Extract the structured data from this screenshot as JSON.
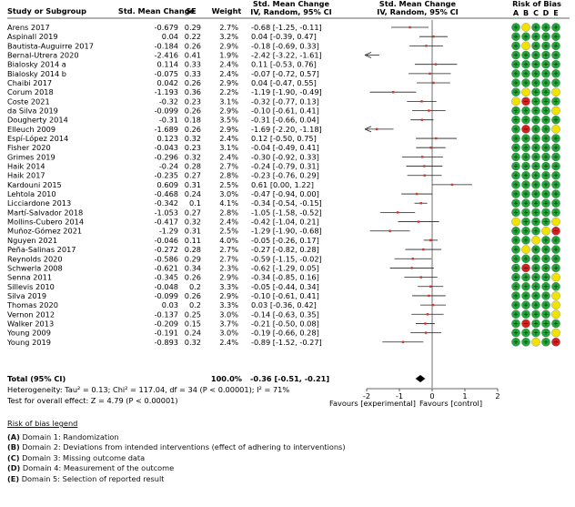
{
  "headers": {
    "study": "Study or Subgroup",
    "smc": "Std. Mean Change",
    "se": "SE",
    "weight": "Weight",
    "ci_col_line1": "Std. Mean Change",
    "ci_col_line2": "IV, Random, 95% CI",
    "plot_line1": "Std. Mean Change",
    "plot_line2": "IV, Random, 95% CI",
    "rob": "Risk of Bias",
    "rob_letters": [
      "A",
      "B",
      "C",
      "D",
      "E"
    ]
  },
  "rob_colors": {
    "green": "#22a63a",
    "yellow": "#f2e200",
    "red": "#d42020"
  },
  "chart_data": {
    "type": "forest",
    "xlim": [
      -2,
      2
    ],
    "xticks": [
      -2,
      -1,
      0,
      1,
      2
    ],
    "xtick_labels": [
      "-2",
      "-1",
      "0",
      "1",
      "2"
    ],
    "favours_left": "Favours [experimental]",
    "favours_right": "Favours [control]",
    "studies": [
      {
        "name": "Arens 2017",
        "smc": "-0.679",
        "se": "0.29",
        "weight": "2.7%",
        "ci": "-0.68 [-1.25, -0.11]",
        "est": -0.68,
        "lo": -1.25,
        "hi": -0.11,
        "rob": [
          "g",
          "y",
          "g",
          "g",
          "g"
        ]
      },
      {
        "name": "Aspinall 2019",
        "smc": "0.04",
        "se": "0.22",
        "weight": "3.2%",
        "ci": "0.04 [-0.39, 0.47]",
        "est": 0.04,
        "lo": -0.39,
        "hi": 0.47,
        "rob": [
          "g",
          "g",
          "g",
          "g",
          "g"
        ]
      },
      {
        "name": "Bautista-Auguirre 2017",
        "smc": "-0.184",
        "se": "0.26",
        "weight": "2.9%",
        "ci": "-0.18 [-0.69, 0.33]",
        "est": -0.18,
        "lo": -0.69,
        "hi": 0.33,
        "rob": [
          "g",
          "y",
          "g",
          "g",
          "g"
        ]
      },
      {
        "name": "Bernal-Utrera 2020",
        "smc": "-2.416",
        "se": "0.41",
        "weight": "1.9%",
        "ci": "-2.42 [-3.22, -1.61]",
        "est": -2.42,
        "lo": -3.22,
        "hi": -1.61,
        "rob": [
          "g",
          "g",
          "g",
          "g",
          "g"
        ]
      },
      {
        "name": "Bialosky 2014 a",
        "smc": "0.114",
        "se": "0.33",
        "weight": "2.4%",
        "ci": "0.11 [-0.53, 0.76]",
        "est": 0.11,
        "lo": -0.53,
        "hi": 0.76,
        "rob": [
          "g",
          "g",
          "g",
          "g",
          "g"
        ]
      },
      {
        "name": "Bialosky 2014 b",
        "smc": "-0.075",
        "se": "0.33",
        "weight": "2.4%",
        "ci": "-0.07 [-0.72, 0.57]",
        "est": -0.07,
        "lo": -0.72,
        "hi": 0.57,
        "rob": [
          "g",
          "g",
          "g",
          "g",
          "g"
        ]
      },
      {
        "name": "Chaibi 2017",
        "smc": "0.042",
        "se": "0.26",
        "weight": "2.9%",
        "ci": "0.04 [-0.47, 0.55]",
        "est": 0.04,
        "lo": -0.47,
        "hi": 0.55,
        "rob": [
          "g",
          "g",
          "g",
          "g",
          "g"
        ]
      },
      {
        "name": "Corum 2018",
        "smc": "-1.193",
        "se": "0.36",
        "weight": "2.2%",
        "ci": "-1.19 [-1.90, -0.49]",
        "est": -1.19,
        "lo": -1.9,
        "hi": -0.49,
        "rob": [
          "g",
          "y",
          "g",
          "g",
          "y"
        ]
      },
      {
        "name": "Coste 2021",
        "smc": "-0.32",
        "se": "0.23",
        "weight": "3.1%",
        "ci": "-0.32 [-0.77, 0.13]",
        "est": -0.32,
        "lo": -0.77,
        "hi": 0.13,
        "rob": [
          "y",
          "r",
          "g",
          "g",
          "g"
        ]
      },
      {
        "name": "da Silva 2019",
        "smc": "-0.099",
        "se": "0.26",
        "weight": "2.9%",
        "ci": "-0.10 [-0.61, 0.41]",
        "est": -0.1,
        "lo": -0.61,
        "hi": 0.41,
        "rob": [
          "g",
          "g",
          "g",
          "g",
          "y"
        ]
      },
      {
        "name": "Dougherty 2014",
        "smc": "-0.31",
        "se": "0.18",
        "weight": "3.5%",
        "ci": "-0.31 [-0.66, 0.04]",
        "est": -0.31,
        "lo": -0.66,
        "hi": 0.04,
        "rob": [
          "g",
          "g",
          "g",
          "g",
          "g"
        ]
      },
      {
        "name": "Elleuch 2009",
        "smc": "-1.689",
        "se": "0.26",
        "weight": "2.9%",
        "ci": "-1.69 [-2.20, -1.18]",
        "est": -1.69,
        "lo": -2.2,
        "hi": -1.18,
        "rob": [
          "g",
          "r",
          "g",
          "g",
          "y"
        ]
      },
      {
        "name": "Espí-López 2014",
        "smc": "0.123",
        "se": "0.32",
        "weight": "2.4%",
        "ci": "0.12 [-0.50, 0.75]",
        "est": 0.12,
        "lo": -0.5,
        "hi": 0.75,
        "rob": [
          "g",
          "g",
          "g",
          "g",
          "g"
        ]
      },
      {
        "name": "Fisher 2020",
        "smc": "-0.043",
        "se": "0.23",
        "weight": "3.1%",
        "ci": "-0.04 [-0.49, 0.41]",
        "est": -0.04,
        "lo": -0.49,
        "hi": 0.41,
        "rob": [
          "g",
          "g",
          "g",
          "g",
          "g"
        ]
      },
      {
        "name": "Grimes 2019",
        "smc": "-0.296",
        "se": "0.32",
        "weight": "2.4%",
        "ci": "-0.30 [-0.92, 0.33]",
        "est": -0.3,
        "lo": -0.92,
        "hi": 0.33,
        "rob": [
          "g",
          "g",
          "g",
          "g",
          "g"
        ]
      },
      {
        "name": "Haik 2014",
        "smc": "-0.24",
        "se": "0.28",
        "weight": "2.7%",
        "ci": "-0.24 [-0.79, 0.31]",
        "est": -0.24,
        "lo": -0.79,
        "hi": 0.31,
        "rob": [
          "g",
          "g",
          "g",
          "g",
          "g"
        ]
      },
      {
        "name": "Haik 2017",
        "smc": "-0.235",
        "se": "0.27",
        "weight": "2.8%",
        "ci": "-0.23 [-0.76, 0.29]",
        "est": -0.23,
        "lo": -0.76,
        "hi": 0.29,
        "rob": [
          "g",
          "g",
          "g",
          "g",
          "g"
        ]
      },
      {
        "name": "Kardouni 2015",
        "smc": "0.609",
        "se": "0.31",
        "weight": "2.5%",
        "ci": "0.61 [0.00, 1.22]",
        "est": 0.61,
        "lo": 0.0,
        "hi": 1.22,
        "rob": [
          "g",
          "g",
          "g",
          "g",
          "g"
        ]
      },
      {
        "name": "Lehtola 2010",
        "smc": "-0.468",
        "se": "0.24",
        "weight": "3.0%",
        "ci": "-0.47 [-0.94, 0.00]",
        "est": -0.47,
        "lo": -0.94,
        "hi": 0.0,
        "rob": [
          "g",
          "g",
          "g",
          "g",
          "g"
        ]
      },
      {
        "name": "Licciardone 2013",
        "smc": "-0.342",
        "se": "0.1",
        "weight": "4.1%",
        "ci": "-0.34 [-0.54, -0.15]",
        "est": -0.34,
        "lo": -0.54,
        "hi": -0.15,
        "rob": [
          "g",
          "g",
          "g",
          "g",
          "g"
        ]
      },
      {
        "name": "Martí-Salvador 2018",
        "smc": "-1.053",
        "se": "0.27",
        "weight": "2.8%",
        "ci": "-1.05 [-1.58, -0.52]",
        "est": -1.05,
        "lo": -1.58,
        "hi": -0.52,
        "rob": [
          "g",
          "g",
          "g",
          "g",
          "g"
        ]
      },
      {
        "name": "Mollins-Cubero 2014",
        "smc": "-0.417",
        "se": "0.32",
        "weight": "2.4%",
        "ci": "-0.42 [-1.04, 0.21]",
        "est": -0.42,
        "lo": -1.04,
        "hi": 0.21,
        "rob": [
          "y",
          "g",
          "g",
          "g",
          "y"
        ]
      },
      {
        "name": "Muñoz-Gómez 2021",
        "smc": "-1.29",
        "se": "0.31",
        "weight": "2.5%",
        "ci": "-1.29 [-1.90, -0.68]",
        "est": -1.29,
        "lo": -1.9,
        "hi": -0.68,
        "rob": [
          "g",
          "g",
          "g",
          "y",
          "r"
        ]
      },
      {
        "name": "Nguyen 2021",
        "smc": "-0.046",
        "se": "0.11",
        "weight": "4.0%",
        "ci": "-0.05 [-0.26, 0.17]",
        "est": -0.05,
        "lo": -0.26,
        "hi": 0.17,
        "rob": [
          "g",
          "g",
          "y",
          "g",
          "g"
        ]
      },
      {
        "name": "Peña-Salinas 2017",
        "smc": "-0.272",
        "se": "0.28",
        "weight": "2.7%",
        "ci": "-0.27 [-0.82, 0.28]",
        "est": -0.27,
        "lo": -0.82,
        "hi": 0.28,
        "rob": [
          "g",
          "y",
          "g",
          "g",
          "g"
        ]
      },
      {
        "name": "Reynolds 2020",
        "smc": "-0.586",
        "se": "0.29",
        "weight": "2.7%",
        "ci": "-0.59 [-1.15, -0.02]",
        "est": -0.59,
        "lo": -1.15,
        "hi": -0.02,
        "rob": [
          "g",
          "g",
          "g",
          "g",
          "g"
        ]
      },
      {
        "name": "Schwerla 2008",
        "smc": "-0.621",
        "se": "0.34",
        "weight": "2.3%",
        "ci": "-0.62 [-1.29, 0.05]",
        "est": -0.62,
        "lo": -1.29,
        "hi": 0.05,
        "rob": [
          "g",
          "r",
          "g",
          "g",
          "g"
        ]
      },
      {
        "name": "Senna 2011",
        "smc": "-0.345",
        "se": "0.26",
        "weight": "2.9%",
        "ci": "-0.34 [-0.85, 0.16]",
        "est": -0.34,
        "lo": -0.85,
        "hi": 0.16,
        "rob": [
          "g",
          "g",
          "g",
          "g",
          "y"
        ]
      },
      {
        "name": "Sillevis 2010",
        "smc": "-0.048",
        "se": "0.2",
        "weight": "3.3%",
        "ci": "-0.05 [-0.44, 0.34]",
        "est": -0.05,
        "lo": -0.44,
        "hi": 0.34,
        "rob": [
          "g",
          "g",
          "g",
          "g",
          "g"
        ]
      },
      {
        "name": "Silva 2019",
        "smc": "-0.099",
        "se": "0.26",
        "weight": "2.9%",
        "ci": "-0.10 [-0.61, 0.41]",
        "est": -0.1,
        "lo": -0.61,
        "hi": 0.41,
        "rob": [
          "g",
          "g",
          "g",
          "g",
          "y"
        ]
      },
      {
        "name": "Thomas 2020",
        "smc": "0.03",
        "se": "0.2",
        "weight": "3.3%",
        "ci": "0.03 [-0.36, 0.42]",
        "est": 0.03,
        "lo": -0.36,
        "hi": 0.42,
        "rob": [
          "g",
          "g",
          "g",
          "g",
          "y"
        ]
      },
      {
        "name": "Vernon 2012",
        "smc": "-0.137",
        "se": "0.25",
        "weight": "3.0%",
        "ci": "-0.14 [-0.63, 0.35]",
        "est": -0.14,
        "lo": -0.63,
        "hi": 0.35,
        "rob": [
          "g",
          "g",
          "g",
          "g",
          "y"
        ]
      },
      {
        "name": "Walker 2013",
        "smc": "-0.209",
        "se": "0.15",
        "weight": "3.7%",
        "ci": "-0.21 [-0.50, 0.08]",
        "est": -0.21,
        "lo": -0.5,
        "hi": 0.08,
        "rob": [
          "g",
          "r",
          "g",
          "g",
          "g"
        ]
      },
      {
        "name": "Young 2009",
        "smc": "-0.191",
        "se": "0.24",
        "weight": "3.0%",
        "ci": "-0.19 [-0.66, 0.28]",
        "est": -0.19,
        "lo": -0.66,
        "hi": 0.28,
        "rob": [
          "g",
          "g",
          "g",
          "g",
          "y"
        ]
      },
      {
        "name": "Young 2019",
        "smc": "-0.893",
        "se": "0.32",
        "weight": "2.4%",
        "ci": "-0.89 [-1.52, -0.27]",
        "est": -0.89,
        "lo": -1.52,
        "hi": -0.27,
        "rob": [
          "g",
          "g",
          "y",
          "g",
          "r"
        ]
      }
    ],
    "total": {
      "label": "Total (95% CI)",
      "weight": "100.0%",
      "ci": "-0.36 [-0.51, -0.21]",
      "est": -0.36,
      "lo": -0.51,
      "hi": -0.21
    },
    "heterogeneity": "Heterogeneity: Tau² = 0.13; Chi² = 117.04, df = 34 (P < 0.00001); I² = 71%",
    "overall_effect": "Test for overall effect: Z = 4.79 (P < 0.00001)"
  },
  "rob_legend": {
    "title": "Risk of bias legend",
    "items": [
      {
        "letter": "(A)",
        "text": "Domain 1: Randomization"
      },
      {
        "letter": "(B)",
        "text": "Domain 2: Deviations from intended interventions (effect of adhering to interventions)"
      },
      {
        "letter": "(C)",
        "text": "Domain 3: Missing outcome data"
      },
      {
        "letter": "(D)",
        "text": "Domain 4: Measurement of the outcome"
      },
      {
        "letter": "(E)",
        "text": "Domain 5: Selection of reported result"
      }
    ]
  }
}
